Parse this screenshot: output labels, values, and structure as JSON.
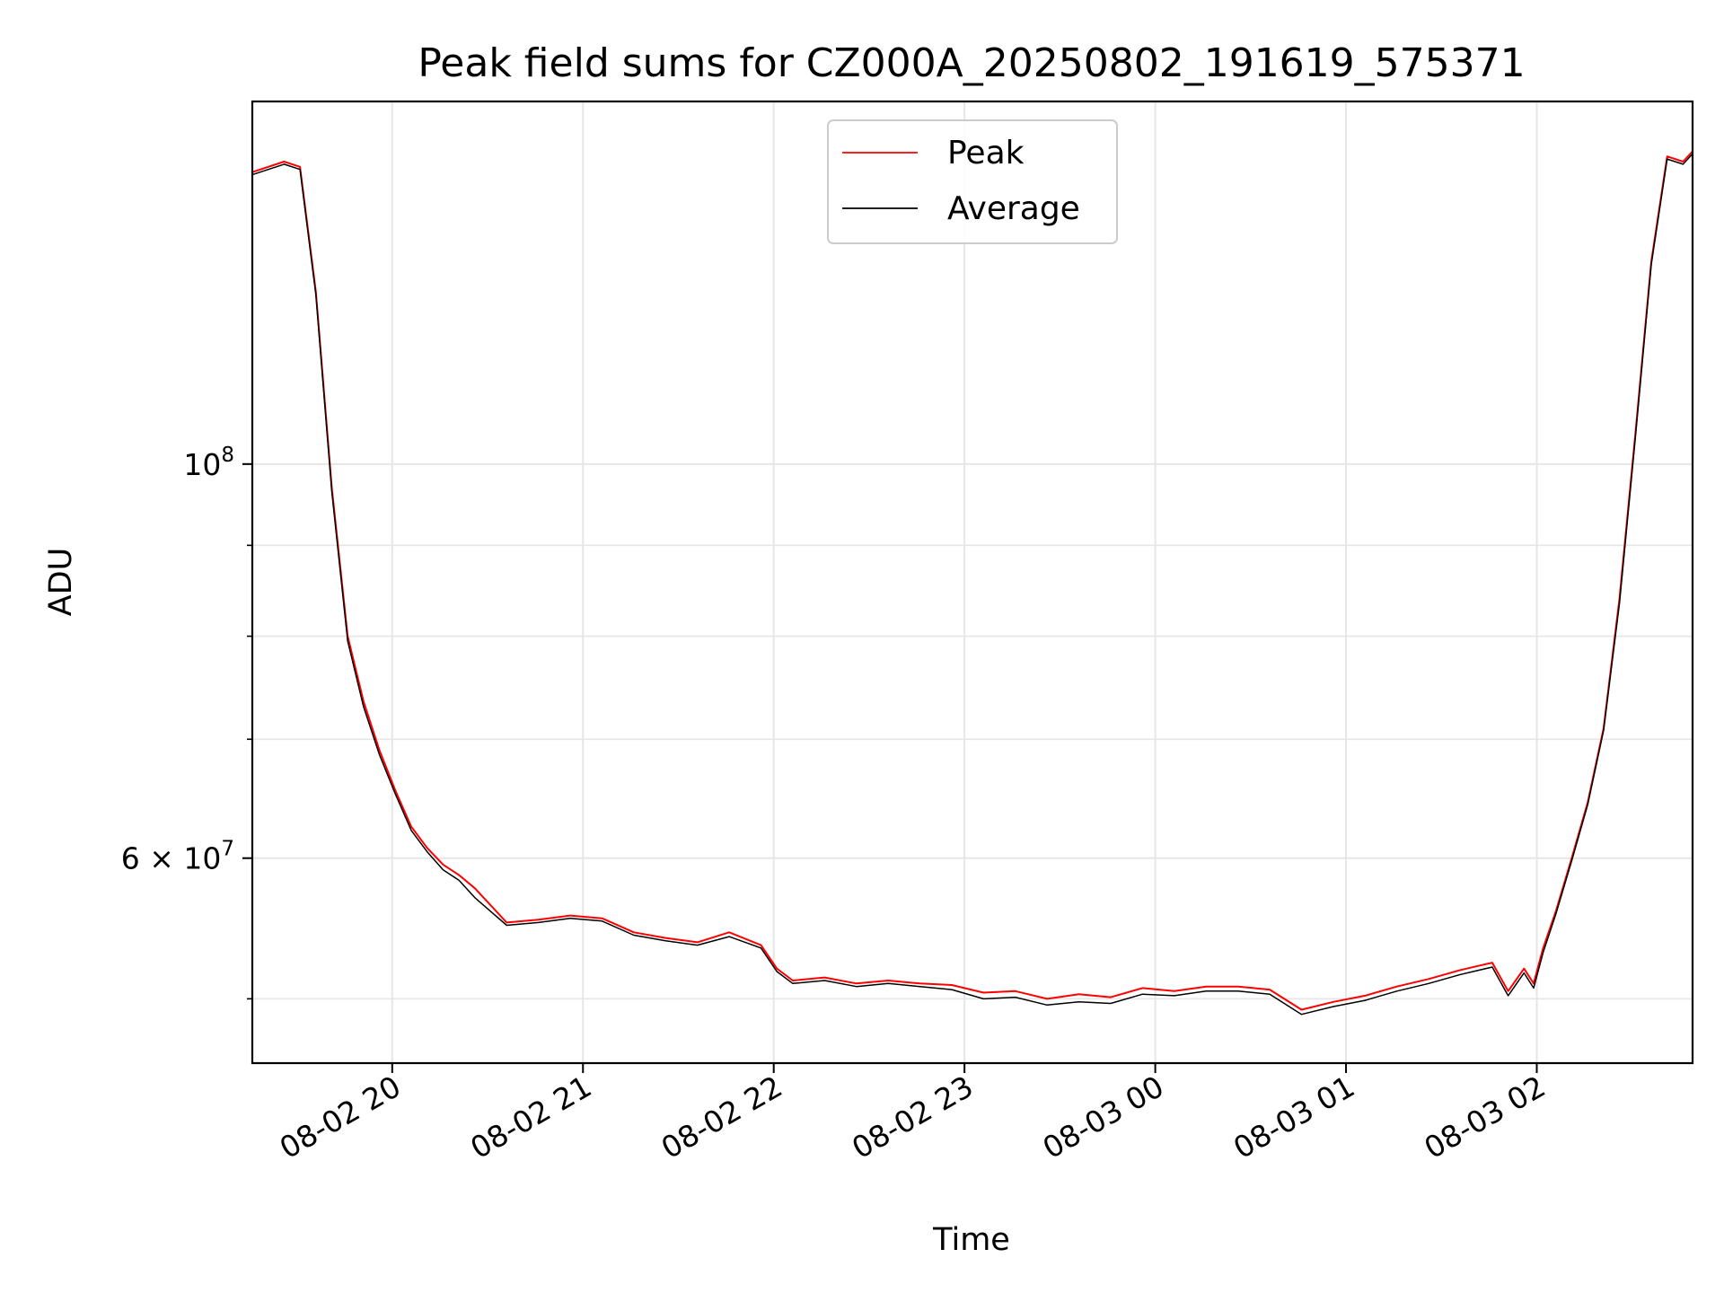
{
  "chart_data": {
    "type": "line",
    "title": "Peak field sums for CZ000A_20250802_191619_575371",
    "xlabel": "Time",
    "ylabel": "ADU",
    "yscale": "log",
    "xlim": [
      "2025-08-02 19:16",
      "2025-08-03 02:49"
    ],
    "ylim": [
      46000000,
      160000000
    ],
    "grid": true,
    "legend": {
      "placement": "top-center",
      "entries": [
        "Peak",
        "Average"
      ]
    },
    "x_ticks": [
      {
        "t": "2025-08-02 20:00",
        "label": "08-02 20"
      },
      {
        "t": "2025-08-02 21:00",
        "label": "08-02 21"
      },
      {
        "t": "2025-08-02 22:00",
        "label": "08-02 22"
      },
      {
        "t": "2025-08-02 23:00",
        "label": "08-02 23"
      },
      {
        "t": "2025-08-03 00:00",
        "label": "08-03 00"
      },
      {
        "t": "2025-08-03 01:00",
        "label": "08-03 01"
      },
      {
        "t": "2025-08-03 02:00",
        "label": "08-03 02"
      }
    ],
    "y_major_ticks": [
      {
        "value": 100000000,
        "base": "10",
        "exp": "8"
      },
      {
        "value": 60000000,
        "base": "6 × 10",
        "exp": "7"
      }
    ],
    "y_minor_ticks": [
      50000000,
      70000000,
      80000000,
      90000000
    ],
    "series": [
      {
        "name": "Peak",
        "color": "#ff0000",
        "x": [
          "2025-08-02 19:16",
          "2025-08-02 19:26",
          "2025-08-02 19:31",
          "2025-08-02 19:36",
          "2025-08-02 19:41",
          "2025-08-02 19:46",
          "2025-08-02 19:51",
          "2025-08-02 19:56",
          "2025-08-02 20:01",
          "2025-08-02 20:06",
          "2025-08-02 20:11",
          "2025-08-02 20:16",
          "2025-08-02 20:21",
          "2025-08-02 20:26",
          "2025-08-02 20:36",
          "2025-08-02 20:46",
          "2025-08-02 20:56",
          "2025-08-02 21:06",
          "2025-08-02 21:16",
          "2025-08-02 21:26",
          "2025-08-02 21:36",
          "2025-08-02 21:46",
          "2025-08-02 21:56",
          "2025-08-02 22:01",
          "2025-08-02 22:06",
          "2025-08-02 22:16",
          "2025-08-02 22:26",
          "2025-08-02 22:36",
          "2025-08-02 22:46",
          "2025-08-02 22:56",
          "2025-08-02 23:06",
          "2025-08-02 23:16",
          "2025-08-02 23:26",
          "2025-08-02 23:36",
          "2025-08-02 23:46",
          "2025-08-02 23:56",
          "2025-08-03 00:06",
          "2025-08-03 00:16",
          "2025-08-03 00:26",
          "2025-08-03 00:36",
          "2025-08-03 00:46",
          "2025-08-03 00:56",
          "2025-08-03 01:06",
          "2025-08-03 01:16",
          "2025-08-03 01:26",
          "2025-08-03 01:36",
          "2025-08-03 01:46",
          "2025-08-03 01:51",
          "2025-08-03 01:56",
          "2025-08-03 01:59",
          "2025-08-03 02:02",
          "2025-08-03 02:06",
          "2025-08-03 02:11",
          "2025-08-03 02:16",
          "2025-08-03 02:21",
          "2025-08-03 02:26",
          "2025-08-03 02:31",
          "2025-08-03 02:36",
          "2025-08-03 02:41",
          "2025-08-03 02:46",
          "2025-08-03 02:49"
        ],
        "values": [
          146000000,
          148000000,
          147000000,
          125000000,
          97000000,
          80000000,
          73500000,
          69000000,
          65500000,
          62500000,
          60800000,
          59500000,
          58700000,
          57700000,
          55200000,
          55400000,
          55700000,
          55500000,
          54500000,
          54100000,
          53800000,
          54500000,
          53600000,
          52000000,
          51200000,
          51400000,
          51000000,
          51200000,
          51000000,
          50900000,
          50400000,
          50500000,
          50000000,
          50300000,
          50100000,
          50700000,
          50500000,
          50800000,
          50800000,
          50600000,
          49300000,
          49800000,
          50200000,
          50800000,
          51300000,
          51900000,
          52400000,
          50500000,
          52000000,
          51000000,
          53400000,
          56000000,
          60000000,
          64500000,
          71000000,
          84000000,
          104000000,
          130000000,
          149000000,
          148000000,
          150000000
        ]
      },
      {
        "name": "Average",
        "color": "#000000",
        "x": [
          "2025-08-02 19:16",
          "2025-08-02 19:26",
          "2025-08-02 19:31",
          "2025-08-02 19:36",
          "2025-08-02 19:41",
          "2025-08-02 19:46",
          "2025-08-02 19:51",
          "2025-08-02 19:56",
          "2025-08-02 20:01",
          "2025-08-02 20:06",
          "2025-08-02 20:11",
          "2025-08-02 20:16",
          "2025-08-02 20:21",
          "2025-08-02 20:26",
          "2025-08-02 20:36",
          "2025-08-02 20:46",
          "2025-08-02 20:56",
          "2025-08-02 21:06",
          "2025-08-02 21:16",
          "2025-08-02 21:26",
          "2025-08-02 21:36",
          "2025-08-02 21:46",
          "2025-08-02 21:56",
          "2025-08-02 22:01",
          "2025-08-02 22:06",
          "2025-08-02 22:16",
          "2025-08-02 22:26",
          "2025-08-02 22:36",
          "2025-08-02 22:46",
          "2025-08-02 22:56",
          "2025-08-02 23:06",
          "2025-08-02 23:16",
          "2025-08-02 23:26",
          "2025-08-02 23:36",
          "2025-08-02 23:46",
          "2025-08-02 23:56",
          "2025-08-03 00:06",
          "2025-08-03 00:16",
          "2025-08-03 00:26",
          "2025-08-03 00:36",
          "2025-08-03 00:46",
          "2025-08-03 00:56",
          "2025-08-03 01:06",
          "2025-08-03 01:16",
          "2025-08-03 01:26",
          "2025-08-03 01:36",
          "2025-08-03 01:46",
          "2025-08-03 01:51",
          "2025-08-03 01:56",
          "2025-08-03 01:59",
          "2025-08-03 02:02",
          "2025-08-03 02:06",
          "2025-08-03 02:11",
          "2025-08-03 02:16",
          "2025-08-03 02:21",
          "2025-08-03 02:26",
          "2025-08-03 02:31",
          "2025-08-03 02:36",
          "2025-08-03 02:41",
          "2025-08-03 02:46",
          "2025-08-03 02:49"
        ],
        "values": [
          145500000,
          147500000,
          146500000,
          124500000,
          96500000,
          79500000,
          73000000,
          68600000,
          65200000,
          62200000,
          60500000,
          59100000,
          58300000,
          57000000,
          55000000,
          55200000,
          55500000,
          55300000,
          54300000,
          53900000,
          53600000,
          54200000,
          53400000,
          51800000,
          51000000,
          51200000,
          50800000,
          51000000,
          50800000,
          50600000,
          50000000,
          50100000,
          49600000,
          49800000,
          49700000,
          50300000,
          50200000,
          50500000,
          50500000,
          50300000,
          49000000,
          49500000,
          49900000,
          50500000,
          51000000,
          51600000,
          52100000,
          50200000,
          51700000,
          50700000,
          53100000,
          55800000,
          59800000,
          64300000,
          70800000,
          83500000,
          103500000,
          129500000,
          148500000,
          147500000,
          149500000
        ]
      }
    ]
  }
}
